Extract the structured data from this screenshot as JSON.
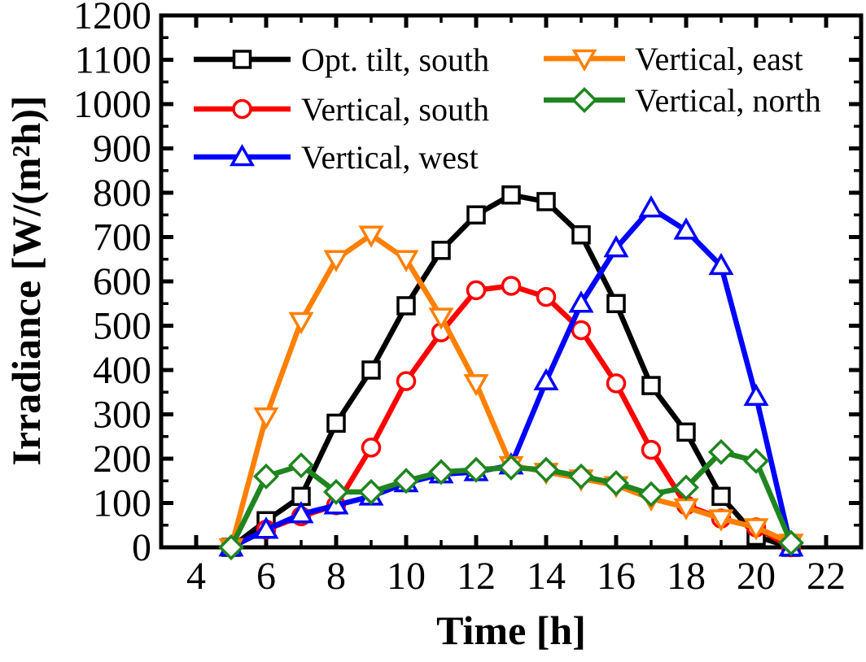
{
  "figure": {
    "background": "#ffffff",
    "frame_color": "#000000"
  },
  "chart_data": {
    "type": "line",
    "title": "",
    "xlabel": "Time [h]",
    "ylabel": "Irradiance [W/(m²h)]",
    "xlim": [
      3,
      23
    ],
    "ylim": [
      0,
      1200
    ],
    "x_major_ticks": [
      4,
      6,
      8,
      10,
      12,
      14,
      16,
      18,
      20,
      22
    ],
    "x_minor_step": 1,
    "y_major_step": 100,
    "y_minor_step": 50,
    "grid": false,
    "x": [
      5,
      6,
      7,
      8,
      9,
      10,
      11,
      12,
      13,
      14,
      15,
      16,
      17,
      18,
      19,
      20,
      21
    ],
    "series": [
      {
        "name": "Opt. tilt, south",
        "marker": "square",
        "color": "#000000",
        "values": [
          0,
          60,
          115,
          280,
          400,
          545,
          670,
          750,
          795,
          780,
          705,
          550,
          365,
          260,
          115,
          25,
          0
        ]
      },
      {
        "name": "Vertical, south",
        "marker": "circle",
        "color": "#ff0000",
        "values": [
          0,
          40,
          70,
          95,
          225,
          375,
          485,
          580,
          590,
          565,
          490,
          370,
          220,
          95,
          65,
          45,
          0
        ]
      },
      {
        "name": "Vertical, west",
        "marker": "triangle-up",
        "color": "#0000ff",
        "values": [
          0,
          40,
          75,
          95,
          115,
          145,
          165,
          170,
          185,
          375,
          550,
          675,
          765,
          715,
          635,
          340,
          0
        ]
      },
      {
        "name": "Vertical, east",
        "marker": "triangle-down",
        "color": "#ff8000",
        "values": [
          0,
          295,
          510,
          650,
          705,
          650,
          520,
          370,
          185,
          170,
          155,
          140,
          110,
          90,
          65,
          45,
          10
        ]
      },
      {
        "name": "Vertical, north",
        "marker": "diamond",
        "color": "#1f851f",
        "values": [
          0,
          160,
          185,
          125,
          125,
          150,
          170,
          175,
          180,
          175,
          160,
          145,
          120,
          135,
          215,
          195,
          10
        ]
      }
    ],
    "legend": {
      "position": "top-inside",
      "border": false,
      "columns": [
        [
          0,
          1,
          2
        ],
        [
          3,
          4
        ]
      ]
    }
  }
}
